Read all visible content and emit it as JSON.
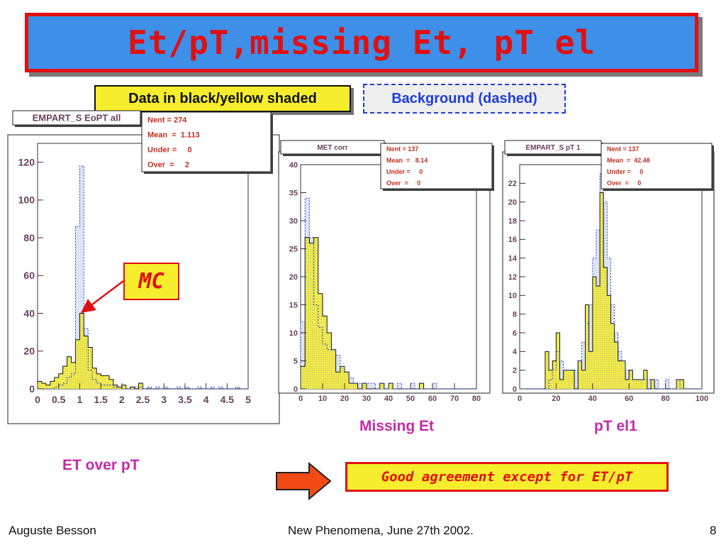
{
  "slide": {
    "title": "Et/pT,missing Et, pT el",
    "data_label": "Data in black/yellow shaded",
    "background_label": "Background (dashed)",
    "mc_label": "MC",
    "conclusion": "Good agreement except for ET/pT",
    "footer_left": "Auguste Besson",
    "footer_center": "New Phenomena, June 27th 2002.",
    "footer_right": "8",
    "colors": {
      "title_bg": "#3d8fe8",
      "title_text": "#e01010",
      "data_fill": "#f6ee2c",
      "bg_line": "#1e3ed8",
      "caption": "#c42aa8"
    }
  },
  "chart_data": [
    {
      "type": "bar",
      "histogram_title": "EMPART_S EoPT all",
      "caption": "ET over pT",
      "stats": [
        {
          "label": "Nent = 274"
        },
        {
          "label": "Mean  =  1.113"
        },
        {
          "label": "Under =     0"
        },
        {
          "label": "Over  =     2"
        }
      ],
      "xlim": [
        0,
        5
      ],
      "ylim": [
        0,
        130
      ],
      "xticks": [
        0,
        0.5,
        1,
        1.5,
        2,
        2.5,
        3,
        3.5,
        4,
        4.5,
        5
      ],
      "xtick_labels": [
        "0",
        "0.5",
        "1",
        "1.5",
        "2",
        "2.5",
        "3",
        "3.5",
        "4",
        "4.5",
        "5"
      ],
      "yticks": [
        0,
        20,
        40,
        60,
        80,
        100,
        120
      ],
      "ytick_labels": [
        "0",
        "20",
        "40",
        "60",
        "80",
        "100",
        "120"
      ],
      "bin_edges": [
        0,
        0.1,
        0.2,
        0.3,
        0.4,
        0.5,
        0.6,
        0.7,
        0.8,
        0.9,
        1.0,
        1.1,
        1.2,
        1.3,
        1.4,
        1.5,
        1.6,
        1.7,
        1.8,
        1.9,
        2.0,
        2.1,
        2.2,
        2.3,
        2.4,
        2.5,
        2.6,
        2.7,
        2.8,
        2.9,
        3.0,
        3.1,
        3.2,
        3.3,
        3.4,
        3.5,
        3.6,
        3.7,
        3.8,
        3.9,
        4.0,
        4.1,
        4.2,
        4.3,
        4.4,
        4.5,
        4.6,
        4.7,
        4.8,
        4.9,
        5.0
      ],
      "series": [
        {
          "style": "data",
          "values": [
            4,
            3,
            2,
            4,
            6,
            8,
            12,
            17,
            14,
            26,
            40,
            28,
            22,
            11,
            8,
            7,
            7,
            5,
            2,
            1,
            2,
            0,
            1,
            0,
            3,
            0,
            0,
            0,
            0,
            0,
            0,
            0,
            0,
            0,
            0,
            0,
            0,
            0,
            0,
            0,
            0,
            0,
            0,
            0,
            0,
            0,
            0,
            0,
            0,
            0
          ]
        },
        {
          "style": "background",
          "values": [
            0,
            0,
            0,
            0,
            1,
            2,
            3,
            6,
            8,
            86,
            118,
            32,
            10,
            5,
            3,
            2,
            2,
            2,
            1,
            1,
            0,
            0,
            1,
            1,
            1,
            0,
            1,
            0,
            1,
            0,
            1,
            0,
            0,
            1,
            0,
            1,
            0,
            0,
            1,
            0,
            0,
            1,
            0,
            1,
            0,
            0,
            0,
            1,
            0,
            0
          ]
        }
      ]
    },
    {
      "type": "bar",
      "histogram_title": "MET corr",
      "caption": "Missing Et",
      "stats": [
        {
          "label": "Nent = 137"
        },
        {
          "label": "Mean  =   8.14"
        },
        {
          "label": "Under =     0"
        },
        {
          "label": "Over  =     0"
        }
      ],
      "xlim": [
        0,
        80
      ],
      "ylim": [
        0,
        40
      ],
      "xticks": [
        0,
        10,
        20,
        30,
        40,
        50,
        60,
        70,
        80
      ],
      "xtick_labels": [
        "0",
        "10",
        "20",
        "30",
        "40",
        "50",
        "60",
        "70",
        "80"
      ],
      "yticks": [
        0,
        5,
        10,
        15,
        20,
        25,
        30,
        35,
        40
      ],
      "ytick_labels": [
        "0",
        "5",
        "10",
        "15",
        "20",
        "25",
        "30",
        "35",
        "40"
      ],
      "bin_edges": [
        0,
        2,
        4,
        6,
        8,
        10,
        12,
        14,
        16,
        18,
        20,
        22,
        24,
        26,
        28,
        30,
        32,
        34,
        36,
        38,
        40,
        42,
        44,
        46,
        48,
        50,
        52,
        54,
        56,
        58,
        60,
        62,
        64,
        66,
        68,
        70,
        72,
        74,
        76,
        78,
        80
      ],
      "series": [
        {
          "style": "data",
          "values": [
            4,
            27,
            26,
            27,
            17,
            13,
            10,
            7,
            3,
            4,
            3,
            1,
            1,
            0,
            1,
            0,
            0,
            0,
            1,
            0,
            1,
            0,
            0,
            0,
            0,
            0,
            0,
            1,
            0,
            0,
            0,
            0,
            0,
            0,
            0,
            0,
            0,
            0,
            0,
            0
          ]
        },
        {
          "style": "background",
          "values": [
            12,
            34,
            27,
            15,
            11,
            8,
            7,
            7,
            6,
            4,
            3,
            2,
            1,
            1,
            1,
            1,
            1,
            0,
            1,
            0,
            1,
            0,
            1,
            0,
            0,
            1,
            0,
            0,
            0,
            0,
            1,
            0,
            0,
            0,
            0,
            0,
            0,
            0,
            0,
            0
          ]
        }
      ]
    },
    {
      "type": "bar",
      "histogram_title": "EMPART_S pT 1",
      "caption": "pT el1",
      "stats": [
        {
          "label": "Nent = 137"
        },
        {
          "label": "Mean  =  42.48"
        },
        {
          "label": "Under =     0"
        },
        {
          "label": "Over  =     0"
        }
      ],
      "xlim": [
        0,
        100
      ],
      "ylim": [
        0,
        24
      ],
      "xticks": [
        0,
        20,
        40,
        60,
        80,
        100
      ],
      "xtick_labels": [
        "0",
        "20",
        "40",
        "60",
        "80",
        "100"
      ],
      "yticks": [
        0,
        2,
        4,
        6,
        8,
        10,
        12,
        14,
        16,
        18,
        20,
        22
      ],
      "ytick_labels": [
        "0",
        "2",
        "4",
        "6",
        "8",
        "10",
        "12",
        "14",
        "16",
        "18",
        "20",
        "22"
      ],
      "bin_edges": [
        0,
        2,
        4,
        6,
        8,
        10,
        12,
        14,
        16,
        18,
        20,
        22,
        24,
        26,
        28,
        30,
        32,
        34,
        36,
        38,
        40,
        42,
        44,
        46,
        48,
        50,
        52,
        54,
        56,
        58,
        60,
        62,
        64,
        66,
        68,
        70,
        72,
        74,
        76,
        78,
        80,
        82,
        84,
        86,
        88,
        90,
        92,
        94,
        96,
        98,
        100
      ],
      "series": [
        {
          "style": "data",
          "values": [
            0,
            0,
            0,
            0,
            0,
            0,
            0,
            4,
            2,
            3,
            6,
            1,
            2,
            2,
            2,
            0,
            3,
            2,
            9,
            4,
            12,
            11,
            21,
            13,
            10,
            7,
            5,
            3,
            3,
            1,
            2,
            1,
            1,
            1,
            2,
            0,
            1,
            0,
            0,
            0,
            0,
            0,
            0,
            1,
            1,
            0,
            0,
            0,
            0,
            0
          ]
        },
        {
          "style": "background",
          "values": [
            0,
            0,
            0,
            0,
            0,
            0,
            0,
            0,
            1,
            2,
            4,
            3,
            2,
            2,
            2,
            2,
            3,
            5,
            7,
            9,
            14,
            17,
            23,
            20,
            14,
            9,
            6,
            4,
            3,
            2,
            2,
            1,
            1,
            1,
            1,
            1,
            0,
            1,
            0,
            0,
            1,
            0,
            0,
            1,
            0,
            0,
            0,
            0,
            0,
            0
          ]
        }
      ]
    }
  ]
}
